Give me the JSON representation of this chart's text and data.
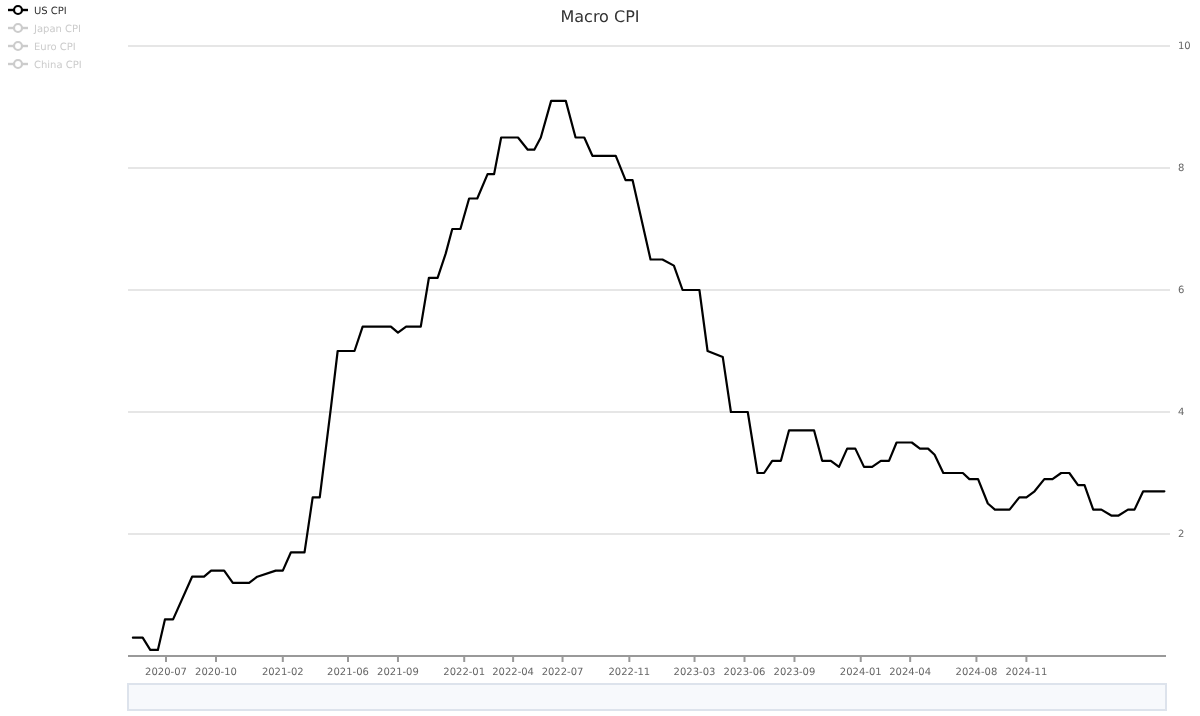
{
  "chart_data": {
    "type": "line",
    "title": "Macro CPI",
    "legend": "top left",
    "grid": "y",
    "marker": "none",
    "line_style": "solid",
    "xlim": [
      "2020-04-22",
      "2025-07-16"
    ],
    "xticks": [
      "2020-07",
      "2020-10",
      "2021-02",
      "2021-06",
      "2021-09",
      "2022-01",
      "2022-04",
      "2022-07",
      "2022-11",
      "2023-03",
      "2023-06",
      "2023-09",
      "2024-01",
      "2024-04",
      "2024-08",
      "2024-11"
    ],
    "ylim": [
      0,
      10
    ],
    "yticks": [
      2,
      4,
      6,
      8,
      10
    ],
    "series": [
      {
        "name": "US CPI",
        "color": "#000000",
        "x": [
          "2020-05-01",
          "2020-05-19",
          "2020-06-02",
          "2020-06-16",
          "2020-06-29",
          "2020-07-14",
          "2020-08-18",
          "2020-09-09",
          "2020-09-22",
          "2020-10-16",
          "2020-11-01",
          "2020-12-01",
          "2020-12-16",
          "2021-01-19",
          "2021-02-01",
          "2021-02-16",
          "2021-03-13",
          "2021-03-28",
          "2021-04-10",
          "2021-05-01",
          "2021-05-13",
          "2021-06-13",
          "2021-06-28",
          "2021-08-19",
          "2021-09-01",
          "2021-09-16",
          "2021-10-13",
          "2021-10-28",
          "2021-11-13",
          "2021-11-28",
          "2021-12-10",
          "2021-12-25",
          "2022-01-10",
          "2022-01-25",
          "2022-02-13",
          "2022-02-25",
          "2022-03-10",
          "2022-04-10",
          "2022-04-28",
          "2022-05-10",
          "2022-05-22",
          "2022-06-10",
          "2022-07-07",
          "2022-07-25",
          "2022-08-10",
          "2022-08-25",
          "2022-10-07",
          "2022-10-25",
          "2022-11-07",
          "2022-12-10",
          "2023-01-01",
          "2023-01-22",
          "2023-02-07",
          "2023-03-10",
          "2023-03-25",
          "2023-04-22",
          "2023-05-07",
          "2023-06-07",
          "2023-06-25",
          "2023-07-07",
          "2023-07-22",
          "2023-08-07",
          "2023-08-22",
          "2023-10-07",
          "2023-10-22",
          "2023-11-07",
          "2023-11-22",
          "2023-12-07",
          "2023-12-22",
          "2024-01-07",
          "2024-01-22",
          "2024-02-07",
          "2024-02-22",
          "2024-03-07",
          "2024-04-04",
          "2024-04-19",
          "2024-05-04",
          "2024-05-16",
          "2024-06-01",
          "2024-07-07",
          "2024-07-19",
          "2024-08-04",
          "2024-08-22",
          "2024-09-04",
          "2024-10-01",
          "2024-10-19",
          "2024-11-01",
          "2024-11-16",
          "2024-12-04",
          "2024-12-19",
          "2025-01-04",
          "2025-01-19",
          "2025-02-04",
          "2025-02-16",
          "2025-03-04",
          "2025-03-19",
          "2025-04-07",
          "2025-04-19",
          "2025-05-07",
          "2025-05-19",
          "2025-06-04",
          "2025-07-13"
        ],
        "values": [
          0.3,
          0.3,
          0.1,
          0.1,
          0.6,
          0.6,
          1.3,
          1.3,
          1.4,
          1.4,
          1.2,
          1.2,
          1.3,
          1.4,
          1.4,
          1.7,
          1.7,
          2.6,
          2.6,
          4.1,
          5.0,
          5.0,
          5.4,
          5.4,
          5.3,
          5.4,
          5.4,
          6.2,
          6.2,
          6.6,
          7.0,
          7.0,
          7.5,
          7.5,
          7.9,
          7.9,
          8.5,
          8.5,
          8.3,
          8.3,
          8.5,
          9.1,
          9.1,
          8.5,
          8.5,
          8.2,
          8.2,
          7.8,
          7.8,
          6.5,
          6.5,
          6.4,
          6.0,
          6.0,
          5.0,
          4.9,
          4.0,
          4.0,
          3.0,
          3.0,
          3.2,
          3.2,
          3.7,
          3.7,
          3.2,
          3.2,
          3.1,
          3.4,
          3.4,
          3.1,
          3.1,
          3.2,
          3.2,
          3.5,
          3.5,
          3.4,
          3.4,
          3.3,
          3.0,
          3.0,
          2.9,
          2.9,
          2.5,
          2.4,
          2.4,
          2.6,
          2.6,
          2.7,
          2.9,
          2.9,
          3.0,
          3.0,
          2.8,
          2.8,
          2.4,
          2.4,
          2.3,
          2.3,
          2.4,
          2.4,
          2.7,
          2.7
        ]
      },
      {
        "name": "Japan CPI",
        "color": "#cccccc"
      },
      {
        "name": "Euro CPI",
        "color": "#cccccc"
      },
      {
        "name": "China CPI",
        "color": "#cccccc"
      }
    ]
  }
}
